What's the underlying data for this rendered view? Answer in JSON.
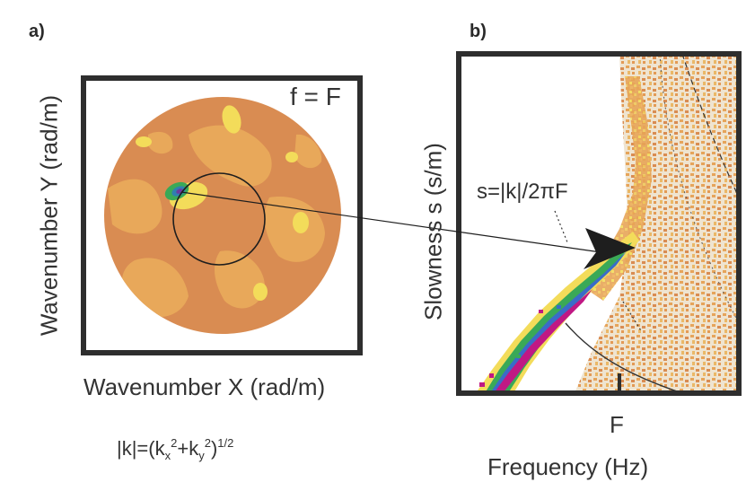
{
  "panel_a": {
    "label": "a)",
    "condition": "f = F",
    "xlabel": "Wavenumber X (rad/m)",
    "ylabel": "Wavenumber Y (rad/m)",
    "formula": {
      "lhs": "|k|=(k",
      "sub_x": "x",
      "sup_2a": "2",
      "plus": "+k",
      "sub_y": "y",
      "sup_2b": "2",
      "close": ")",
      "sup_half": "1/2"
    }
  },
  "panel_b": {
    "label": "b)",
    "ylabel": "Slowness s (s/m)",
    "xlabel": "Frequency (Hz)",
    "f_tick": "F",
    "formula": "s=|k|/2πF"
  },
  "colors": {
    "background_orange": "#d98c52",
    "light_orange": "#e8a85a",
    "yellow": "#f3dc5a",
    "green": "#3aa957",
    "blue": "#3a6cc8",
    "magenta": "#c01884",
    "frame": "#2e2e2e"
  }
}
